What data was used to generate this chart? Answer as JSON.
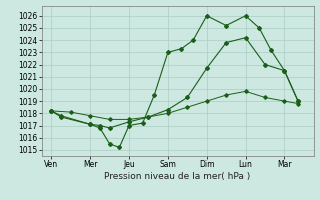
{
  "xlabel": "Pression niveau de la mer( hPa )",
  "background_color": "#cce8e0",
  "grid_color": "#aaccc4",
  "line_color": "#1a5e1a",
  "ylim": [
    1014.5,
    1026.8
  ],
  "yticks": [
    1015,
    1016,
    1017,
    1018,
    1019,
    1020,
    1021,
    1022,
    1023,
    1024,
    1025,
    1026
  ],
  "x_labels": [
    "Ven",
    "Mer",
    "Jeu",
    "Sam",
    "Dim",
    "Lun",
    "Mar"
  ],
  "x_positions": [
    0,
    2,
    4,
    6,
    8,
    10,
    12
  ],
  "xlim": [
    -0.5,
    13.5
  ],
  "series1_x": [
    0,
    0.5,
    2.0,
    2.5,
    3.0,
    3.5,
    4.0,
    4.7,
    5.3,
    6.0,
    6.7,
    7.3,
    8.0,
    9.0,
    10.0,
    10.7,
    11.3,
    12.0,
    12.7
  ],
  "series1_y": [
    1018.2,
    1017.8,
    1017.1,
    1016.8,
    1015.5,
    1015.2,
    1017.0,
    1017.2,
    1019.5,
    1023.0,
    1023.3,
    1024.0,
    1026.0,
    1025.2,
    1026.0,
    1025.0,
    1023.2,
    1021.5,
    1019.0
  ],
  "series2_x": [
    0,
    0.5,
    2.0,
    2.5,
    3.0,
    4.0,
    5.0,
    6.0,
    7.0,
    8.0,
    9.0,
    10.0,
    11.0,
    12.0,
    12.7
  ],
  "series2_y": [
    1018.2,
    1017.7,
    1017.1,
    1017.0,
    1016.8,
    1017.3,
    1017.7,
    1018.3,
    1019.3,
    1021.7,
    1023.8,
    1024.2,
    1022.0,
    1021.5,
    1019.0
  ],
  "series3_x": [
    0,
    1.0,
    2.0,
    3.0,
    4.0,
    5.0,
    6.0,
    7.0,
    8.0,
    9.0,
    10.0,
    11.0,
    12.0,
    12.7
  ],
  "series3_y": [
    1018.2,
    1018.1,
    1017.8,
    1017.5,
    1017.5,
    1017.7,
    1018.0,
    1018.5,
    1019.0,
    1019.5,
    1019.8,
    1019.3,
    1019.0,
    1018.8
  ],
  "tick_fontsize": 5.5,
  "xlabel_fontsize": 6.5
}
